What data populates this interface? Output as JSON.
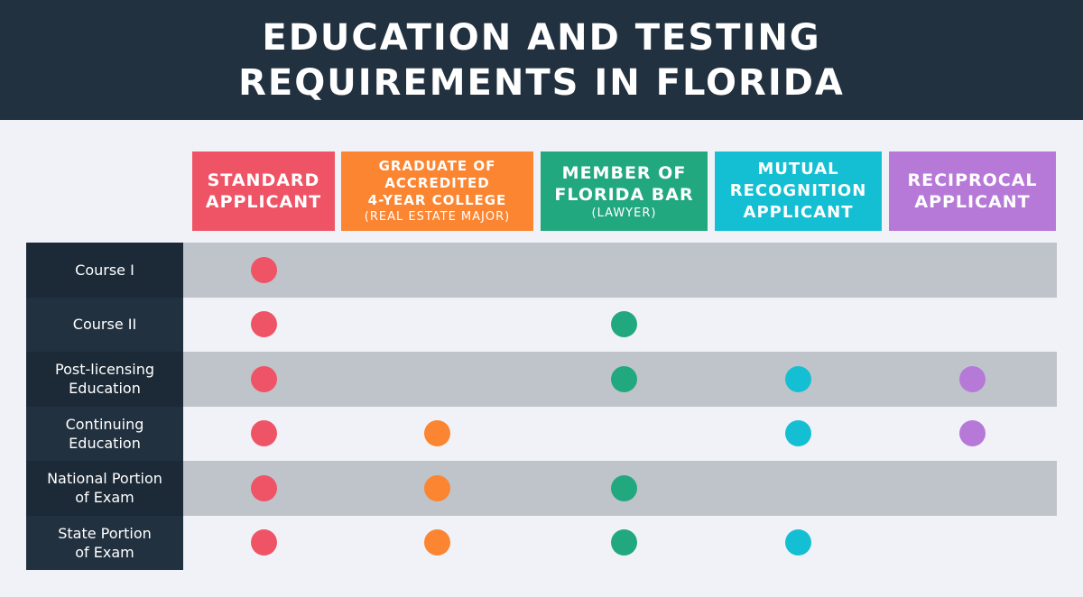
{
  "header": {
    "title_lines": [
      "EDUCATION AND TESTING",
      "REQUIREMENTS IN FLORIDA"
    ]
  },
  "table": {
    "columns": [
      {
        "lines": [
          "STANDARD",
          "APPLICANT"
        ],
        "color": "#ef5466"
      },
      {
        "lines": [
          "GRADUATE OF",
          "ACCREDITED",
          "4-YEAR COLLEGE"
        ],
        "sub": "(REAL ESTATE MAJOR)",
        "color": "#fb8530"
      },
      {
        "lines": [
          "MEMBER OF",
          "FLORIDA BAR"
        ],
        "sub": "(LAWYER)",
        "color": "#22a87f"
      },
      {
        "lines": [
          "MUTUAL",
          "RECOGNITION",
          "APPLICANT"
        ],
        "color": "#15bfd3"
      },
      {
        "lines": [
          "RECIPROCAL",
          "APPLICANT"
        ],
        "color": "#b679d8"
      }
    ],
    "rows": [
      {
        "lines": [
          "Course I"
        ],
        "cells": [
          true,
          false,
          false,
          false,
          false
        ]
      },
      {
        "lines": [
          "Course II"
        ],
        "cells": [
          true,
          false,
          true,
          false,
          false
        ]
      },
      {
        "lines": [
          "Post-licensing",
          "Education"
        ],
        "cells": [
          true,
          false,
          true,
          true,
          true
        ]
      },
      {
        "lines": [
          "Continuing",
          "Education"
        ],
        "cells": [
          true,
          true,
          false,
          true,
          true
        ]
      },
      {
        "lines": [
          "National Portion",
          "of Exam"
        ],
        "cells": [
          true,
          true,
          true,
          false,
          false
        ]
      },
      {
        "lines": [
          "State Portion",
          "of Exam"
        ],
        "cells": [
          true,
          true,
          true,
          true,
          false
        ]
      }
    ]
  }
}
